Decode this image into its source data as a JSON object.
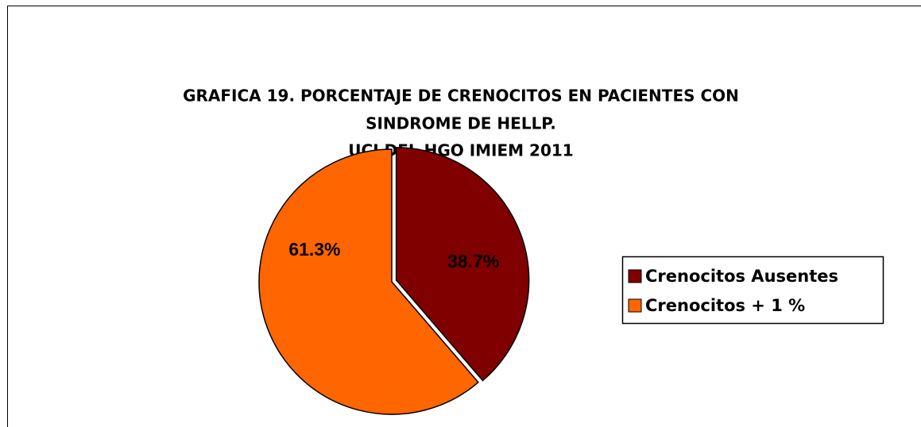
{
  "chart_data": {
    "type": "pie",
    "title": [
      "GRAFICA 19. PORCENTAJE DE CRENOCITOS EN PACIENTES CON",
      "SINDROME DE HELLP.",
      "UCI DEL HGO IMIEM 2011"
    ],
    "categories": [
      "Crenocitos Ausentes",
      "Crenocitos + 1 %"
    ],
    "values": [
      38.7,
      61.3
    ],
    "value_labels": [
      "38.7%",
      "61.3%"
    ],
    "colors": [
      "#800000",
      "#ff6600"
    ],
    "legend": "right"
  }
}
